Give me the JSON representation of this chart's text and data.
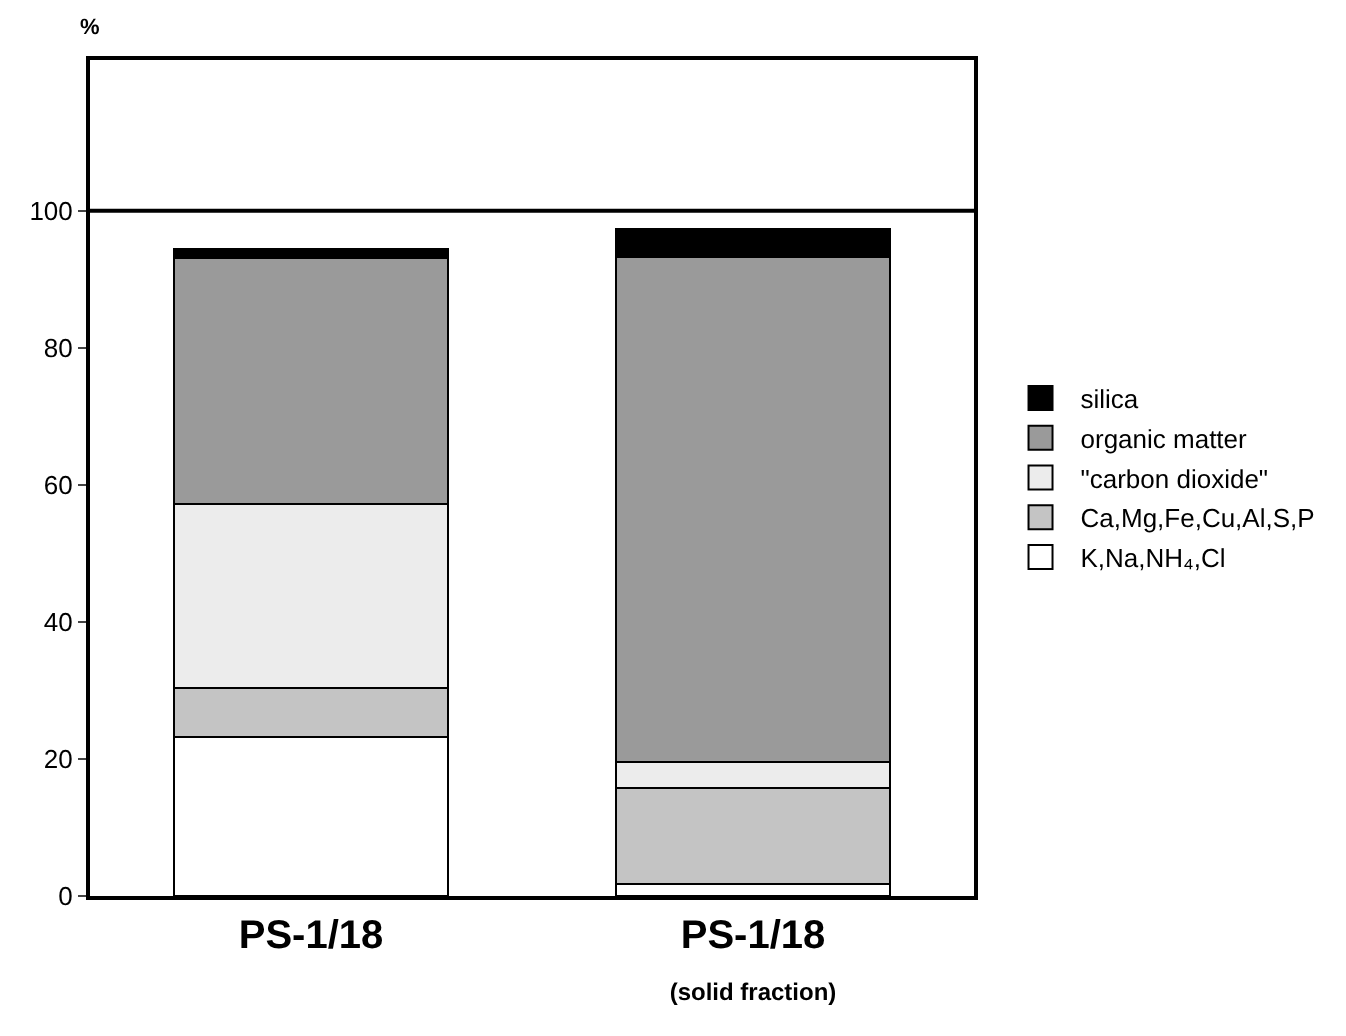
{
  "chart_data": {
    "type": "bar",
    "stacked": true,
    "ylabel": "%",
    "categories": [
      "PS-1/18",
      "PS-1/18\n(solid fraction)"
    ],
    "series": [
      {
        "name": "K,Na,NH₄,Cl",
        "color": "#ffffff",
        "values": [
          23.2,
          1.8
        ]
      },
      {
        "name": "Ca,Mg,Fe,Cu,Al,S,P",
        "color": "#c4c4c4",
        "values": [
          7.1,
          13.9
        ]
      },
      {
        "name": "\"carbon dioxide\"",
        "color": "#ececec",
        "values": [
          26.9,
          3.9
        ]
      },
      {
        "name": "organic matter",
        "color": "#9a9a9a",
        "values": [
          35.9,
          73.6
        ]
      },
      {
        "name": "silica",
        "color": "#000000",
        "values": [
          1.3,
          4.2
        ]
      }
    ],
    "ylim": [
      0,
      122
    ],
    "yticks": [
      0,
      20,
      40,
      60,
      80,
      100
    ],
    "ref_lines": [
      {
        "axis": "y",
        "value": 100,
        "color": "#000000"
      }
    ],
    "legend": "right"
  }
}
